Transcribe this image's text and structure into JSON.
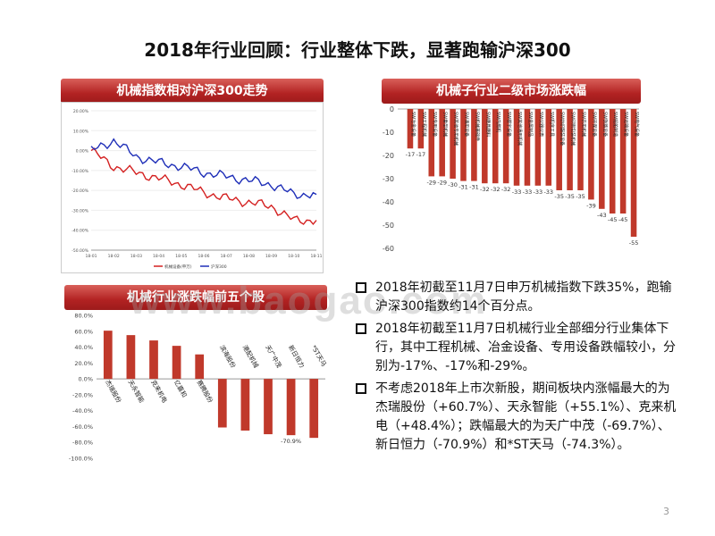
{
  "slide": {
    "title": "2018年行业回顾：行业整体下跌，显著跑输沪深300",
    "page_number": "3",
    "watermark": "www.baogao.com"
  },
  "colors": {
    "accent": "#b22222",
    "line_red": "#d42020",
    "line_blue": "#1f2fb8",
    "bar": "#c0392b"
  },
  "banners": {
    "left_top": "机械指数相对沪深300走势",
    "right_top": "机械子行业二级市场涨跌幅",
    "left_bottom": "机械行业涨跌幅前五个股"
  },
  "bullets": [
    "2018年初截至11月7日申万机械指数下跌35%，跑输沪深300指数约14个百分点。",
    "2018年初截至11月7日机械行业全部细分行业集体下行，其中工程机械、冶金设备、专用设备跌幅较小，分别为-17%、-17%和-29%。",
    "不考虑2018年上市次新股，期间板块内涨幅最大的为杰瑞股份（+60.7%）、天永智能（+55.1%）、克来机电（+48.4%）；跌幅最大的为天广中茂（-69.7%）、新日恒力（-70.9%）和*ST天马（-74.3%）。"
  ],
  "chart_data": [
    {
      "type": "line",
      "x": [
        "18-01",
        "18-02",
        "18-03",
        "18-04",
        "18-05",
        "18-06",
        "18-07",
        "18-08",
        "18-09",
        "18-10",
        "18-11"
      ],
      "ylim": [
        -50,
        20
      ],
      "yticks": [
        "20.00%",
        "10.00%",
        "0.00%",
        "-10.00%",
        "-20.00%",
        "-30.00%",
        "-40.00%",
        "-50.00%"
      ],
      "series": [
        {
          "name": "机械设备(申万)",
          "values": [
            0,
            -8,
            -11,
            -14,
            -17,
            -21,
            -24,
            -26,
            -28,
            -35,
            -35
          ]
        },
        {
          "name": "沪深300",
          "values": [
            0,
            5,
            -3,
            -6,
            -8,
            -11,
            -13,
            -15,
            -17,
            -22,
            -22
          ]
        }
      ]
    },
    {
      "type": "bar",
      "categories": [
        "SW冶金设备",
        "SW工程机械",
        "SW专用设备",
        "SW重型机械",
        "SW其他专用机械",
        "SW通用设备",
        "SW机械基础件",
        "SW磨具磨料",
        "SW内燃机",
        "SW楼宇设备",
        "SW其他通用机械",
        "SW金属制品",
        "SW仪器仪表",
        "SW机床工具",
        "SW纺织服装设备",
        "SW印刷包装机械",
        "SW农用机械",
        "SW环保设备",
        "SW铁路设备",
        "SW船舶制造",
        "SW运输设备",
        "SW电气设备"
      ],
      "values": [
        -17,
        -17,
        -29,
        -29,
        -30,
        -31,
        -31,
        -32,
        -32,
        -32,
        -33,
        -33,
        -33,
        -33,
        -35,
        -35,
        -35,
        -39,
        -43,
        -45,
        -45,
        -55
      ],
      "labels": [
        "-17",
        "-17",
        "-29",
        "-29",
        "-30",
        "-31",
        "-31",
        "-32",
        "-32",
        "-32",
        "-33",
        "-33",
        "-33",
        "-33",
        "-35",
        "-35",
        "-35",
        "-39",
        "-43",
        "-45",
        "-45",
        "-55"
      ],
      "ylim": [
        -60,
        0
      ],
      "yticks": [
        "0",
        "-10",
        "-20",
        "-30",
        "-40",
        "-50",
        "-60"
      ]
    },
    {
      "type": "bar",
      "categories": [
        "杰瑞股份",
        "天永智能",
        "克来机电",
        "亿嘉和",
        "赛腾股份",
        "滨海股份",
        "港配机械",
        "天广中茂",
        "新日恒力",
        "*ST天马"
      ],
      "values": [
        60.7,
        55.1,
        48.4,
        41.6,
        30.8,
        -61.2,
        -65.1,
        -69.7,
        -70.9,
        -74.3
      ],
      "labels": [
        "",
        "",
        "",
        "",
        "",
        "",
        "",
        "",
        "-70.9%",
        ""
      ],
      "ylim": [
        -100,
        80
      ],
      "yticks": [
        "80.0%",
        "60.0%",
        "40.0%",
        "20.0%",
        "0.0%",
        "-20.0%",
        "-40.0%",
        "-60.0%",
        "-80.0%",
        "-100.0%"
      ]
    }
  ]
}
